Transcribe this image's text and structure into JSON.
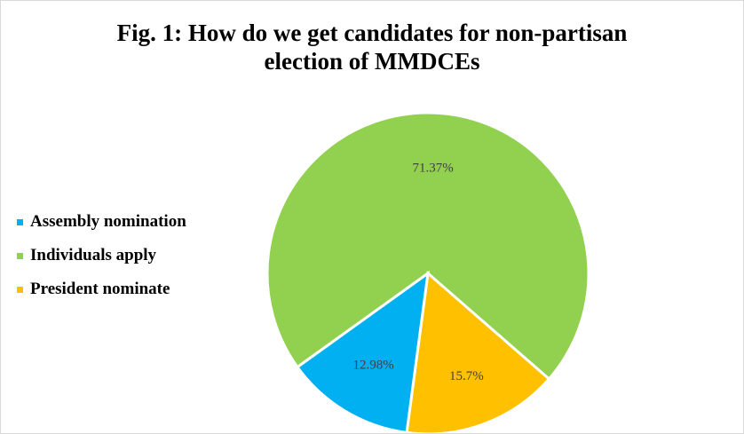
{
  "chart_data": {
    "type": "pie",
    "title_lines": [
      "Fig. 1: How do we get candidates for non-partisan",
      "election of MMDCEs"
    ],
    "categories": [
      "Assembly nomination",
      "Individuals apply",
      "President nominate"
    ],
    "values": [
      12.98,
      71.37,
      15.7
    ],
    "value_labels": [
      "12.98%",
      "71.37%",
      "15.7%"
    ],
    "colors": [
      "#00b0f0",
      "#92d050",
      "#ffc000"
    ],
    "legend_position": "left"
  }
}
